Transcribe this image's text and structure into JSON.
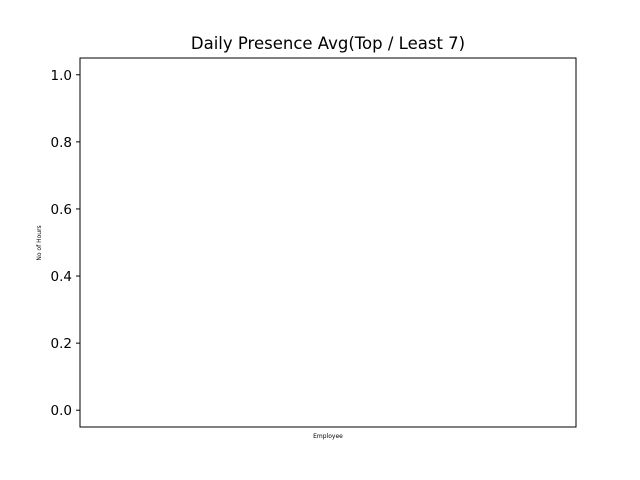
{
  "chart_data": {
    "type": "bar",
    "title": "Daily Presence Avg(Top / Least 7)",
    "xlabel": "Employee",
    "ylabel": "No of Hours",
    "categories": [],
    "values": [],
    "ylim": [
      -0.05,
      1.05
    ],
    "yticks": [
      "0.0",
      "0.2",
      "0.4",
      "0.6",
      "0.8",
      "1.0"
    ],
    "grid": false,
    "legend": "none"
  }
}
